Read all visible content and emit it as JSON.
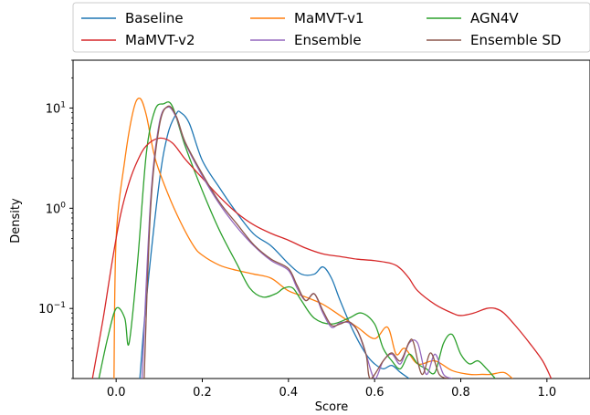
{
  "chart_data": {
    "type": "line",
    "xlabel": "Score",
    "ylabel": "Density",
    "xlim": [
      -0.1,
      1.1
    ],
    "ylim": [
      0.02,
      30
    ],
    "yscale": "log",
    "grid": false,
    "legend_placement": "top, above plot, 3 columns",
    "xticks": [
      {
        "value": 0.0,
        "label": "0.0"
      },
      {
        "value": 0.2,
        "label": "0.2"
      },
      {
        "value": 0.4,
        "label": "0.4"
      },
      {
        "value": 0.6,
        "label": "0.6"
      },
      {
        "value": 0.8,
        "label": "0.8"
      },
      {
        "value": 1.0,
        "label": "1.0"
      }
    ],
    "yticks": [
      {
        "value": 0.1,
        "base": "10",
        "exp": "−1"
      },
      {
        "value": 1,
        "base": "10",
        "exp": "0"
      },
      {
        "value": 10,
        "base": "10",
        "exp": "1"
      }
    ],
    "series": [
      {
        "name": "Baseline",
        "color": "#1f77b4",
        "x": [
          0.055,
          0.07,
          0.1,
          0.12,
          0.14,
          0.15,
          0.17,
          0.2,
          0.24,
          0.28,
          0.32,
          0.36,
          0.4,
          0.43,
          0.46,
          0.48,
          0.5,
          0.52,
          0.55,
          0.58,
          0.6,
          0.62,
          0.64,
          0.66,
          0.68
        ],
        "y": [
          0.02,
          0.12,
          1.8,
          5.5,
          8.8,
          9.0,
          7.0,
          3.0,
          1.6,
          0.9,
          0.55,
          0.42,
          0.28,
          0.22,
          0.22,
          0.26,
          0.2,
          0.12,
          0.06,
          0.035,
          0.028,
          0.025,
          0.027,
          0.023,
          0.02
        ]
      },
      {
        "name": "MaMVT-v1",
        "color": "#ff7f0e",
        "x": [
          -0.005,
          0.0,
          0.02,
          0.04,
          0.055,
          0.07,
          0.09,
          0.12,
          0.15,
          0.18,
          0.2,
          0.24,
          0.28,
          0.32,
          0.36,
          0.4,
          0.44,
          0.48,
          0.52,
          0.56,
          0.6,
          0.63,
          0.65,
          0.67,
          0.7,
          0.74,
          0.78,
          0.82,
          0.85,
          0.87,
          0.9,
          0.92
        ],
        "y": [
          0.02,
          0.5,
          3.0,
          9.5,
          12.5,
          8.5,
          3.2,
          1.4,
          0.72,
          0.42,
          0.34,
          0.27,
          0.24,
          0.22,
          0.2,
          0.15,
          0.13,
          0.11,
          0.085,
          0.065,
          0.05,
          0.065,
          0.035,
          0.04,
          0.028,
          0.03,
          0.024,
          0.022,
          0.022,
          0.022,
          0.023,
          0.02
        ]
      },
      {
        "name": "AGN4V",
        "color": "#2ca02c",
        "x": [
          -0.04,
          -0.02,
          0.0,
          0.02,
          0.03,
          0.05,
          0.07,
          0.09,
          0.11,
          0.13,
          0.16,
          0.2,
          0.24,
          0.28,
          0.31,
          0.34,
          0.37,
          0.39,
          0.41,
          0.43,
          0.46,
          0.5,
          0.54,
          0.57,
          0.6,
          0.62,
          0.64,
          0.66,
          0.68,
          0.7,
          0.72,
          0.74,
          0.76,
          0.78,
          0.8,
          0.82,
          0.84,
          0.86,
          0.88
        ],
        "y": [
          0.02,
          0.05,
          0.1,
          0.08,
          0.045,
          0.3,
          3.5,
          9.5,
          11.0,
          10.5,
          4.2,
          1.5,
          0.6,
          0.28,
          0.16,
          0.13,
          0.14,
          0.16,
          0.16,
          0.12,
          0.08,
          0.07,
          0.08,
          0.09,
          0.07,
          0.04,
          0.03,
          0.025,
          0.035,
          0.028,
          0.025,
          0.023,
          0.045,
          0.055,
          0.035,
          0.028,
          0.03,
          0.025,
          0.02
        ]
      },
      {
        "name": "MaMVT-v2",
        "color": "#d62728",
        "x": [
          -0.055,
          -0.03,
          -0.01,
          0.01,
          0.03,
          0.05,
          0.07,
          0.1,
          0.13,
          0.16,
          0.2,
          0.24,
          0.28,
          0.32,
          0.36,
          0.4,
          0.44,
          0.48,
          0.52,
          0.56,
          0.6,
          0.64,
          0.66,
          0.68,
          0.7,
          0.74,
          0.78,
          0.8,
          0.83,
          0.86,
          0.88,
          0.9,
          0.93,
          0.96,
          0.99,
          1.01
        ],
        "y": [
          0.02,
          0.08,
          0.28,
          0.85,
          1.8,
          3.0,
          4.2,
          5.0,
          4.5,
          3.1,
          2.0,
          1.3,
          0.9,
          0.68,
          0.56,
          0.48,
          0.4,
          0.35,
          0.33,
          0.31,
          0.3,
          0.28,
          0.25,
          0.2,
          0.15,
          0.11,
          0.09,
          0.085,
          0.09,
          0.1,
          0.1,
          0.09,
          0.065,
          0.045,
          0.03,
          0.02
        ]
      },
      {
        "name": "Ensemble",
        "color": "#9467bd",
        "x": [
          0.06,
          0.08,
          0.1,
          0.12,
          0.14,
          0.16,
          0.2,
          0.24,
          0.28,
          0.32,
          0.36,
          0.4,
          0.42,
          0.44,
          0.46,
          0.48,
          0.5,
          0.52,
          0.54,
          0.56,
          0.58,
          0.6,
          0.62,
          0.64,
          0.66,
          0.68,
          0.7,
          0.72,
          0.74,
          0.76,
          0.78
        ],
        "y": [
          0.02,
          1.2,
          7.0,
          10.2,
          8.0,
          4.5,
          2.1,
          1.1,
          0.65,
          0.42,
          0.3,
          0.24,
          0.16,
          0.12,
          0.14,
          0.09,
          0.065,
          0.072,
          0.072,
          0.06,
          0.035,
          0.02,
          0.03,
          0.035,
          0.028,
          0.045,
          0.045,
          0.022,
          0.035,
          0.022,
          0.02
        ]
      },
      {
        "name": "Ensemble SD",
        "color": "#8c564b",
        "x": [
          0.065,
          0.08,
          0.1,
          0.12,
          0.14,
          0.16,
          0.2,
          0.24,
          0.28,
          0.32,
          0.36,
          0.4,
          0.42,
          0.44,
          0.46,
          0.48,
          0.5,
          0.52,
          0.54,
          0.56,
          0.58,
          0.59,
          0.62,
          0.64,
          0.66,
          0.68,
          0.69,
          0.71,
          0.73,
          0.75,
          0.77
        ],
        "y": [
          0.02,
          1.0,
          6.5,
          10.4,
          8.2,
          4.6,
          2.2,
          1.15,
          0.7,
          0.43,
          0.31,
          0.25,
          0.17,
          0.12,
          0.14,
          0.095,
          0.068,
          0.07,
          0.074,
          0.06,
          0.035,
          0.02,
          0.03,
          0.036,
          0.03,
          0.046,
          0.046,
          0.022,
          0.036,
          0.022,
          0.02
        ]
      }
    ]
  }
}
